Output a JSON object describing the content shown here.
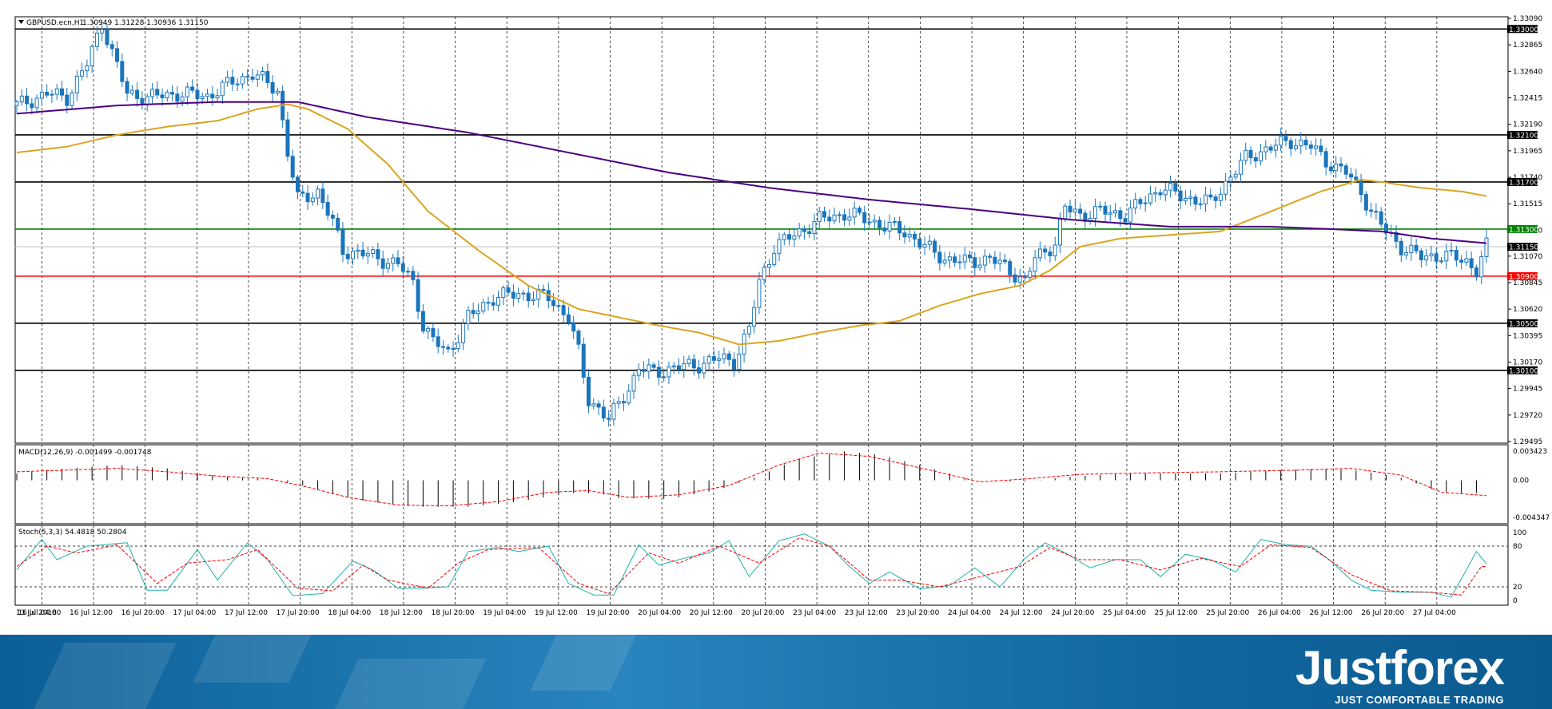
{
  "header": {
    "symbol_label": "GBPUSD.ecn,H1",
    "ohlc": "1.30949 1.31228 1.30936 1.31150"
  },
  "macd_label": "MACD(12,26,9) -0.001499 -0.001748",
  "stoch_label": "Stoch(5,3,3) 54.4818 50.2804",
  "brand": {
    "logo": "Justforex",
    "tagline": "JUST COMFORTABLE TRADING"
  },
  "colors": {
    "candle": "#1a75bc",
    "ma_fast": "#daa520",
    "ma_slow": "#4b0082",
    "support_red": "#ff0000",
    "level_green": "#008000",
    "stoch_main": "#20b2aa",
    "signal": "#ff0000"
  },
  "chart_data": [
    {
      "type": "candlestick",
      "symbol": "GBPUSD.ecn",
      "timeframe": "H1",
      "ylim": [
        1.29495,
        1.3309
      ],
      "y_ticks": [
        "1.33090",
        "1.32865",
        "1.32640",
        "1.32415",
        "1.32190",
        "1.31965",
        "1.31740",
        "1.31515",
        "1.31290",
        "1.31070",
        "1.30845",
        "1.30620",
        "1.30395",
        "1.30170",
        "1.29945",
        "1.29720",
        "1.29495"
      ],
      "x_ticks": [
        "13 Jul 2018",
        "16 Jul 04:00",
        "16 Jul 12:00",
        "16 Jul 20:00",
        "17 Jul 04:00",
        "17 Jul 12:00",
        "17 Jul 20:00",
        "18 Jul 04:00",
        "18 Jul 12:00",
        "18 Jul 20:00",
        "19 Jul 04:00",
        "19 Jul 12:00",
        "19 Jul 20:00",
        "20 Jul 04:00",
        "20 Jul 12:00",
        "20 Jul 20:00",
        "23 Jul 04:00",
        "23 Jul 12:00",
        "23 Jul 20:00",
        "24 Jul 04:00",
        "24 Jul 12:00",
        "24 Jul 20:00",
        "25 Jul 04:00",
        "25 Jul 12:00",
        "25 Jul 20:00",
        "26 Jul 04:00",
        "26 Jul 12:00",
        "26 Jul 20:00",
        "27 Jul 04:00"
      ],
      "levels": [
        {
          "price": 1.33,
          "label": "1.33000",
          "color": "#000000"
        },
        {
          "price": 1.321,
          "label": "1.32100",
          "color": "#000000"
        },
        {
          "price": 1.317,
          "label": "1.31700",
          "color": "#000000"
        },
        {
          "price": 1.313,
          "label": "1.31300",
          "color": "#008000"
        },
        {
          "price": 1.3115,
          "label": "1.31150",
          "color": "#000000",
          "current": true
        },
        {
          "price": 1.309,
          "label": "1.30900",
          "color": "#ff0000"
        },
        {
          "price": 1.305,
          "label": "1.30500",
          "color": "#000000"
        },
        {
          "price": 1.301,
          "label": "1.30100",
          "color": "#000000"
        }
      ],
      "close_path": [
        [
          0,
          1.3235
        ],
        [
          6,
          1.3245
        ],
        [
          10,
          1.3242
        ],
        [
          14,
          1.327
        ],
        [
          17,
          1.3305
        ],
        [
          20,
          1.3268
        ],
        [
          22,
          1.3245
        ],
        [
          26,
          1.3242
        ],
        [
          32,
          1.3245
        ],
        [
          38,
          1.3243
        ],
        [
          43,
          1.3255
        ],
        [
          47,
          1.3262
        ],
        [
          52,
          1.3248
        ],
        [
          54,
          1.3195
        ],
        [
          56,
          1.3155
        ],
        [
          60,
          1.3162
        ],
        [
          63,
          1.3135
        ],
        [
          65,
          1.3112
        ],
        [
          70,
          1.3108
        ],
        [
          76,
          1.31
        ],
        [
          79,
          1.3085
        ],
        [
          81,
          1.3048
        ],
        [
          83,
          1.3035
        ],
        [
          86,
          1.3025
        ],
        [
          90,
          1.3055
        ],
        [
          95,
          1.3072
        ],
        [
          100,
          1.3075
        ],
        [
          106,
          1.3072
        ],
        [
          110,
          1.3055
        ],
        [
          112,
          1.3025
        ],
        [
          114,
          1.2985
        ],
        [
          116,
          1.2978
        ],
        [
          118,
          1.2968
        ],
        [
          122,
          1.2995
        ],
        [
          124,
          1.3012
        ],
        [
          127,
          1.3008
        ],
        [
          131,
          1.3012
        ],
        [
          136,
          1.3015
        ],
        [
          140,
          1.302
        ],
        [
          143,
          1.3018
        ],
        [
          146,
          1.3045
        ],
        [
          148,
          1.3085
        ],
        [
          151,
          1.3115
        ],
        [
          155,
          1.3125
        ],
        [
          160,
          1.3138
        ],
        [
          165,
          1.3143
        ],
        [
          170,
          1.3138
        ],
        [
          173,
          1.3132
        ],
        [
          177,
          1.3128
        ],
        [
          181,
          1.3115
        ],
        [
          185,
          1.3105
        ],
        [
          189,
          1.3102
        ],
        [
          194,
          1.3105
        ],
        [
          198,
          1.3095
        ],
        [
          201,
          1.3085
        ],
        [
          203,
          1.3105
        ],
        [
          207,
          1.3118
        ],
        [
          209,
          1.3148
        ],
        [
          212,
          1.3142
        ],
        [
          216,
          1.3145
        ],
        [
          221,
          1.3142
        ],
        [
          225,
          1.3155
        ],
        [
          228,
          1.3165
        ],
        [
          232,
          1.3158
        ],
        [
          235,
          1.3155
        ],
        [
          238,
          1.3152
        ],
        [
          242,
          1.3175
        ],
        [
          245,
          1.319
        ],
        [
          249,
          1.3198
        ],
        [
          254,
          1.3205
        ],
        [
          258,
          1.32
        ],
        [
          261,
          1.3188
        ],
        [
          265,
          1.3178
        ],
        [
          268,
          1.3162
        ],
        [
          270,
          1.3145
        ],
        [
          273,
          1.3128
        ],
        [
          276,
          1.3115
        ],
        [
          280,
          1.3106
        ],
        [
          284,
          1.3108
        ],
        [
          289,
          1.3103
        ],
        [
          291,
          1.3095
        ],
        [
          293,
          1.3115
        ]
      ],
      "ma_fast_path": [
        [
          0,
          1.3195
        ],
        [
          10,
          1.32
        ],
        [
          20,
          1.321
        ],
        [
          30,
          1.3217
        ],
        [
          40,
          1.3222
        ],
        [
          48,
          1.3232
        ],
        [
          54,
          1.3236
        ],
        [
          58,
          1.3232
        ],
        [
          66,
          1.3215
        ],
        [
          74,
          1.3185
        ],
        [
          82,
          1.3145
        ],
        [
          92,
          1.3112
        ],
        [
          102,
          1.3082
        ],
        [
          112,
          1.3062
        ],
        [
          120,
          1.3055
        ],
        [
          128,
          1.3048
        ],
        [
          136,
          1.3042
        ],
        [
          144,
          1.3032
        ],
        [
          152,
          1.3035
        ],
        [
          160,
          1.3042
        ],
        [
          168,
          1.3048
        ],
        [
          176,
          1.3052
        ],
        [
          184,
          1.3065
        ],
        [
          192,
          1.3075
        ],
        [
          200,
          1.3082
        ],
        [
          206,
          1.3095
        ],
        [
          212,
          1.3115
        ],
        [
          220,
          1.3122
        ],
        [
          230,
          1.3125
        ],
        [
          240,
          1.3128
        ],
        [
          250,
          1.3145
        ],
        [
          260,
          1.3162
        ],
        [
          268,
          1.3172
        ],
        [
          272,
          1.317
        ],
        [
          280,
          1.3165
        ],
        [
          288,
          1.3162
        ],
        [
          293,
          1.3158
        ]
      ],
      "ma_slow_path": [
        [
          0,
          1.3228
        ],
        [
          20,
          1.3235
        ],
        [
          40,
          1.3238
        ],
        [
          56,
          1.3238
        ],
        [
          70,
          1.3225
        ],
        [
          90,
          1.3212
        ],
        [
          110,
          1.3195
        ],
        [
          130,
          1.3178
        ],
        [
          150,
          1.3165
        ],
        [
          170,
          1.3155
        ],
        [
          190,
          1.3147
        ],
        [
          210,
          1.3138
        ],
        [
          230,
          1.3132
        ],
        [
          250,
          1.3132
        ],
        [
          262,
          1.313
        ],
        [
          272,
          1.3128
        ],
        [
          282,
          1.3122
        ],
        [
          293,
          1.3118
        ]
      ]
    },
    {
      "type": "bar",
      "name": "MACD(12,26,9)",
      "ylim": [
        -0.004347,
        0.003423
      ],
      "y_ticks": [
        "0.003423",
        "0.00",
        "-0.004347"
      ],
      "values_path": [
        [
          0,
          0.0008
        ],
        [
          10,
          0.0014
        ],
        [
          20,
          0.0018
        ],
        [
          30,
          0.0014
        ],
        [
          40,
          0.0005
        ],
        [
          50,
          0.0001
        ],
        [
          56,
          -0.0004
        ],
        [
          62,
          -0.0015
        ],
        [
          70,
          -0.0025
        ],
        [
          80,
          -0.0031
        ],
        [
          90,
          -0.0031
        ],
        [
          100,
          -0.0025
        ],
        [
          110,
          -0.0015
        ],
        [
          116,
          -0.0015
        ],
        [
          120,
          -0.0021
        ],
        [
          130,
          -0.0022
        ],
        [
          140,
          -0.0011
        ],
        [
          148,
          0.0005
        ],
        [
          155,
          0.0024
        ],
        [
          165,
          0.0034
        ],
        [
          172,
          0.003
        ],
        [
          180,
          0.0018
        ],
        [
          190,
          0.0001
        ],
        [
          200,
          -0.0002
        ],
        [
          210,
          0.0004
        ],
        [
          220,
          0.0008
        ],
        [
          230,
          0.0008
        ],
        [
          240,
          0.0008
        ],
        [
          250,
          0.0011
        ],
        [
          260,
          0.0014
        ],
        [
          268,
          0.0011
        ],
        [
          276,
          0.0003
        ],
        [
          284,
          -0.0015
        ],
        [
          293,
          -0.0015
        ]
      ],
      "signal_path": [
        [
          0,
          0.001
        ],
        [
          10,
          0.0012
        ],
        [
          20,
          0.0014
        ],
        [
          30,
          0.001
        ],
        [
          40,
          0.0005
        ],
        [
          50,
          0.0002
        ],
        [
          58,
          -0.0008
        ],
        [
          66,
          -0.002
        ],
        [
          76,
          -0.0029
        ],
        [
          86,
          -0.003
        ],
        [
          96,
          -0.0025
        ],
        [
          106,
          -0.0014
        ],
        [
          114,
          -0.0012
        ],
        [
          122,
          -0.002
        ],
        [
          132,
          -0.0017
        ],
        [
          142,
          -0.0006
        ],
        [
          152,
          0.0018
        ],
        [
          160,
          0.0032
        ],
        [
          170,
          0.0028
        ],
        [
          182,
          0.0012
        ],
        [
          192,
          -0.0002
        ],
        [
          202,
          0.0002
        ],
        [
          212,
          0.0007
        ],
        [
          228,
          0.0009
        ],
        [
          240,
          0.001
        ],
        [
          256,
          0.0012
        ],
        [
          266,
          0.0014
        ],
        [
          276,
          0.0006
        ],
        [
          284,
          -0.0014
        ],
        [
          293,
          -0.0018
        ]
      ]
    },
    {
      "type": "line",
      "name": "Stoch(5,3,3)",
      "ylim": [
        0,
        100
      ],
      "y_ticks": [
        "100",
        "80",
        "20",
        "0"
      ],
      "main_path": [
        [
          0,
          45
        ],
        [
          5,
          90
        ],
        [
          8,
          60
        ],
        [
          14,
          80
        ],
        [
          22,
          85
        ],
        [
          26,
          15
        ],
        [
          30,
          15
        ],
        [
          36,
          75
        ],
        [
          40,
          30
        ],
        [
          46,
          85
        ],
        [
          50,
          60
        ],
        [
          55,
          7
        ],
        [
          61,
          10
        ],
        [
          67,
          58
        ],
        [
          71,
          45
        ],
        [
          76,
          18
        ],
        [
          80,
          18
        ],
        [
          86,
          20
        ],
        [
          90,
          72
        ],
        [
          96,
          78
        ],
        [
          100,
          72
        ],
        [
          106,
          80
        ],
        [
          110,
          25
        ],
        [
          115,
          8
        ],
        [
          119,
          8
        ],
        [
          124,
          82
        ],
        [
          128,
          52
        ],
        [
          133,
          62
        ],
        [
          138,
          70
        ],
        [
          142,
          88
        ],
        [
          146,
          35
        ],
        [
          152,
          88
        ],
        [
          157,
          98
        ],
        [
          162,
          80
        ],
        [
          166,
          50
        ],
        [
          170,
          25
        ],
        [
          174,
          42
        ],
        [
          180,
          17
        ],
        [
          186,
          22
        ],
        [
          191,
          48
        ],
        [
          196,
          20
        ],
        [
          201,
          62
        ],
        [
          205,
          85
        ],
        [
          209,
          70
        ],
        [
          214,
          48
        ],
        [
          219,
          60
        ],
        [
          224,
          60
        ],
        [
          228,
          35
        ],
        [
          233,
          68
        ],
        [
          238,
          60
        ],
        [
          243,
          42
        ],
        [
          248,
          90
        ],
        [
          253,
          82
        ],
        [
          258,
          80
        ],
        [
          262,
          58
        ],
        [
          266,
          30
        ],
        [
          270,
          15
        ],
        [
          276,
          12
        ],
        [
          282,
          12
        ],
        [
          286,
          5
        ],
        [
          291,
          72
        ],
        [
          293,
          54
        ]
      ],
      "signal_path": [
        [
          0,
          50
        ],
        [
          6,
          80
        ],
        [
          12,
          70
        ],
        [
          20,
          82
        ],
        [
          28,
          25
        ],
        [
          34,
          55
        ],
        [
          42,
          60
        ],
        [
          48,
          75
        ],
        [
          56,
          18
        ],
        [
          63,
          14
        ],
        [
          69,
          52
        ],
        [
          74,
          30
        ],
        [
          82,
          18
        ],
        [
          88,
          55
        ],
        [
          94,
          75
        ],
        [
          104,
          78
        ],
        [
          112,
          25
        ],
        [
          118,
          10
        ],
        [
          126,
          70
        ],
        [
          132,
          55
        ],
        [
          140,
          80
        ],
        [
          148,
          55
        ],
        [
          156,
          92
        ],
        [
          162,
          80
        ],
        [
          170,
          30
        ],
        [
          176,
          30
        ],
        [
          184,
          20
        ],
        [
          192,
          35
        ],
        [
          200,
          50
        ],
        [
          206,
          78
        ],
        [
          212,
          60
        ],
        [
          220,
          60
        ],
        [
          228,
          45
        ],
        [
          236,
          62
        ],
        [
          244,
          50
        ],
        [
          250,
          82
        ],
        [
          258,
          78
        ],
        [
          266,
          38
        ],
        [
          274,
          14
        ],
        [
          282,
          12
        ],
        [
          288,
          8
        ],
        [
          292,
          50
        ]
      ]
    }
  ]
}
